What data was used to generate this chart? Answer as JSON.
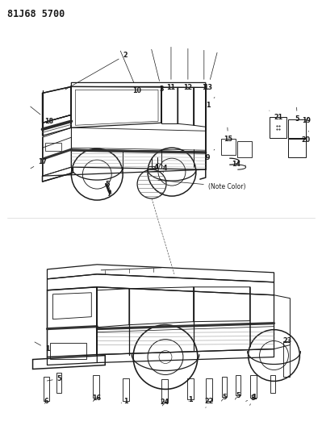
{
  "title": "81J68 5700",
  "background_color": "#ffffff",
  "line_color": "#1a1a1a",
  "title_fontsize": 8.5,
  "label_fontsize": 5.8,
  "note_color_text": "(Note Color)"
}
